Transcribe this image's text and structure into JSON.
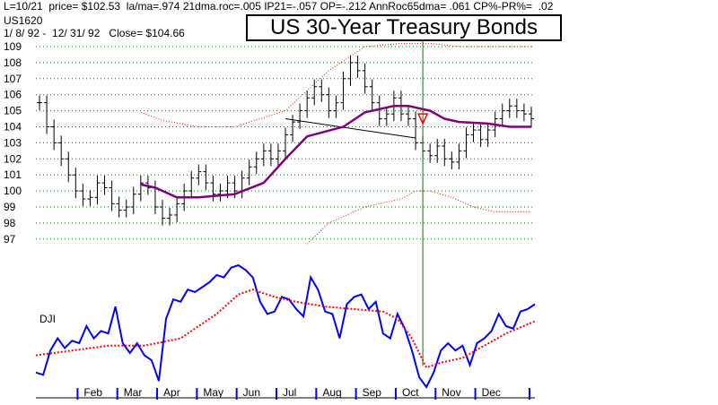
{
  "header": {
    "line1": "L=10/21  price= $102.53  la/ma=.974 21dma.roc=.005 IP21=-.057 OP=-.212 AnnRoc65dma= .061 CP%-PR%=  .02",
    "symbol": "US1620",
    "line3": "1/ 8/ 92 -  12/ 31/ 92   Close= $104.66"
  },
  "title": "US 30-Year Treasury Bonds",
  "lower_label": "DJI",
  "colors": {
    "price_bars": "#000000",
    "moving_average": "#800080",
    "bands": "#ff0000",
    "dji_line": "#0000ff",
    "dji_average": "#ff0000",
    "marker_line": "#008000",
    "grid": "#008000",
    "month_ticks": "#0000ff"
  },
  "chart_data": [
    {
      "type": "ohlc",
      "title": "US 30-Year Treasury Bonds",
      "y_tick_labels": [
        "109",
        "108",
        "107",
        "106",
        "105",
        "104",
        "103",
        "102",
        "101",
        "100",
        "99",
        "98",
        "97"
      ],
      "ylim": [
        97,
        109
      ],
      "x_tick_labels": [
        "Feb",
        "Mar",
        "Apr",
        "May",
        "Jun",
        "Jul",
        "Aug",
        "Sep",
        "Oct",
        "Nov",
        "Dec"
      ],
      "grid": true,
      "close_series": [
        [
          1,
          105.5
        ],
        [
          3,
          104.0
        ],
        [
          5,
          103.0
        ],
        [
          7,
          102.0
        ],
        [
          9,
          101.0
        ],
        [
          11,
          100.0
        ],
        [
          13,
          99.5
        ],
        [
          15,
          99.6
        ],
        [
          17,
          100.5
        ],
        [
          19,
          100.2
        ],
        [
          21,
          99.2
        ],
        [
          23,
          98.8
        ],
        [
          25,
          99.0
        ],
        [
          27,
          99.8
        ],
        [
          29,
          100.5
        ],
        [
          31,
          100.2
        ],
        [
          33,
          99.0
        ],
        [
          35,
          98.3
        ],
        [
          37,
          98.5
        ],
        [
          39,
          99.2
        ],
        [
          41,
          100.0
        ],
        [
          43,
          100.8
        ],
        [
          45,
          101.2
        ],
        [
          47,
          100.5
        ],
        [
          49,
          99.8
        ],
        [
          51,
          100.0
        ],
        [
          53,
          100.5
        ],
        [
          55,
          100.0
        ],
        [
          57,
          100.8
        ],
        [
          59,
          101.5
        ],
        [
          61,
          102.0
        ],
        [
          63,
          102.5
        ],
        [
          65,
          102.0
        ],
        [
          67,
          102.5
        ],
        [
          69,
          103.5
        ],
        [
          71,
          104.3
        ],
        [
          73,
          105.0
        ],
        [
          75,
          105.8
        ],
        [
          77,
          106.5
        ],
        [
          79,
          106.0
        ],
        [
          81,
          105.0
        ],
        [
          83,
          105.5
        ],
        [
          85,
          107.0
        ],
        [
          87,
          108.0
        ],
        [
          89,
          107.5
        ],
        [
          91,
          106.5
        ],
        [
          93,
          105.5
        ],
        [
          95,
          104.5
        ],
        [
          97,
          104.8
        ],
        [
          99,
          105.8
        ],
        [
          101,
          104.8
        ],
        [
          103,
          104.5
        ],
        [
          105,
          103.0
        ],
        [
          107,
          102.5
        ],
        [
          109,
          102.2
        ],
        [
          111,
          102.8
        ],
        [
          113,
          102.0
        ],
        [
          115,
          101.8
        ],
        [
          117,
          102.5
        ],
        [
          119,
          103.5
        ],
        [
          121,
          103.8
        ],
        [
          123,
          103.2
        ],
        [
          125,
          103.8
        ],
        [
          127,
          104.5
        ],
        [
          129,
          105.0
        ],
        [
          131,
          105.3
        ],
        [
          133,
          105.0
        ],
        [
          135,
          104.8
        ],
        [
          137,
          104.5
        ]
      ],
      "moving_average": [
        [
          29,
          100.4
        ],
        [
          33,
          100.2
        ],
        [
          39,
          99.6
        ],
        [
          45,
          99.6
        ],
        [
          55,
          99.8
        ],
        [
          63,
          100.5
        ],
        [
          69,
          102.0
        ],
        [
          75,
          103.4
        ],
        [
          85,
          104.0
        ],
        [
          91,
          104.9
        ],
        [
          99,
          105.3
        ],
        [
          103,
          105.3
        ],
        [
          109,
          105.0
        ],
        [
          113,
          104.5
        ],
        [
          117,
          104.3
        ],
        [
          125,
          104.2
        ],
        [
          131,
          104.0
        ],
        [
          137,
          104.0
        ]
      ],
      "upper_band": [
        [
          29,
          104.9
        ],
        [
          35,
          104.4
        ],
        [
          45,
          104.0
        ],
        [
          55,
          104.0
        ],
        [
          69,
          105.0
        ],
        [
          81,
          107.5
        ],
        [
          91,
          109.0
        ],
        [
          101,
          109.2
        ],
        [
          109,
          109.2
        ],
        [
          117,
          109.0
        ],
        [
          125,
          109.0
        ],
        [
          137,
          109.0
        ]
      ],
      "lower_band": [
        [
          75,
          96.7
        ],
        [
          81,
          98.0
        ],
        [
          91,
          99.0
        ],
        [
          101,
          99.5
        ],
        [
          105,
          100.0
        ],
        [
          109,
          100.0
        ],
        [
          115,
          99.6
        ],
        [
          121,
          99.0
        ],
        [
          127,
          98.7
        ],
        [
          137,
          98.7
        ]
      ],
      "trend_line": [
        [
          69,
          104.5
        ],
        [
          105,
          103.3
        ]
      ]
    },
    {
      "type": "line",
      "name": "DJI",
      "series": [
        {
          "name": "DJI",
          "points": [
            [
              0,
              0.12
            ],
            [
              2,
              0.1
            ],
            [
              4,
              0.3
            ],
            [
              6,
              0.4
            ],
            [
              8,
              0.32
            ],
            [
              10,
              0.38
            ],
            [
              12,
              0.36
            ],
            [
              14,
              0.5
            ],
            [
              16,
              0.4
            ],
            [
              18,
              0.46
            ],
            [
              20,
              0.44
            ],
            [
              22,
              0.66
            ],
            [
              24,
              0.36
            ],
            [
              26,
              0.28
            ],
            [
              28,
              0.36
            ],
            [
              30,
              0.26
            ],
            [
              32,
              0.22
            ],
            [
              34,
              0.05
            ],
            [
              36,
              0.56
            ],
            [
              38,
              0.72
            ],
            [
              40,
              0.7
            ],
            [
              42,
              0.8
            ],
            [
              44,
              0.78
            ],
            [
              46,
              0.82
            ],
            [
              48,
              0.86
            ],
            [
              50,
              0.92
            ],
            [
              52,
              0.9
            ],
            [
              54,
              0.98
            ],
            [
              56,
              1.0
            ],
            [
              58,
              0.96
            ],
            [
              60,
              0.9
            ],
            [
              62,
              0.7
            ],
            [
              64,
              0.6
            ],
            [
              66,
              0.62
            ],
            [
              68,
              0.74
            ],
            [
              70,
              0.72
            ],
            [
              72,
              0.64
            ],
            [
              74,
              0.58
            ],
            [
              76,
              0.9
            ],
            [
              78,
              0.8
            ],
            [
              80,
              0.62
            ],
            [
              82,
              0.6
            ],
            [
              84,
              0.4
            ],
            [
              86,
              0.68
            ],
            [
              88,
              0.74
            ],
            [
              90,
              0.76
            ],
            [
              92,
              0.64
            ],
            [
              94,
              0.7
            ],
            [
              96,
              0.44
            ],
            [
              98,
              0.4
            ],
            [
              100,
              0.6
            ],
            [
              102,
              0.48
            ],
            [
              104,
              0.3
            ],
            [
              106,
              0.08
            ],
            [
              108,
              0.0
            ],
            [
              110,
              0.12
            ],
            [
              112,
              0.3
            ],
            [
              114,
              0.36
            ],
            [
              116,
              0.3
            ],
            [
              118,
              0.34
            ],
            [
              120,
              0.18
            ],
            [
              122,
              0.36
            ],
            [
              124,
              0.4
            ],
            [
              126,
              0.46
            ],
            [
              128,
              0.6
            ],
            [
              130,
              0.5
            ],
            [
              132,
              0.48
            ],
            [
              134,
              0.62
            ],
            [
              136,
              0.64
            ],
            [
              138,
              0.68
            ]
          ]
        },
        {
          "name": "DJI average",
          "points": [
            [
              0,
              0.26
            ],
            [
              10,
              0.3
            ],
            [
              20,
              0.34
            ],
            [
              30,
              0.34
            ],
            [
              40,
              0.4
            ],
            [
              50,
              0.6
            ],
            [
              56,
              0.76
            ],
            [
              60,
              0.8
            ],
            [
              66,
              0.74
            ],
            [
              72,
              0.7
            ],
            [
              80,
              0.66
            ],
            [
              88,
              0.64
            ],
            [
              96,
              0.62
            ],
            [
              100,
              0.56
            ],
            [
              104,
              0.4
            ],
            [
              108,
              0.16
            ],
            [
              112,
              0.2
            ],
            [
              118,
              0.24
            ],
            [
              124,
              0.34
            ],
            [
              130,
              0.44
            ],
            [
              138,
              0.54
            ]
          ]
        }
      ],
      "x_tick_labels": [
        "Feb",
        "Mar",
        "Apr",
        "May",
        "Jun",
        "Jul",
        "Aug",
        "Sep",
        "Oct",
        "Nov",
        "Dec"
      ]
    }
  ]
}
